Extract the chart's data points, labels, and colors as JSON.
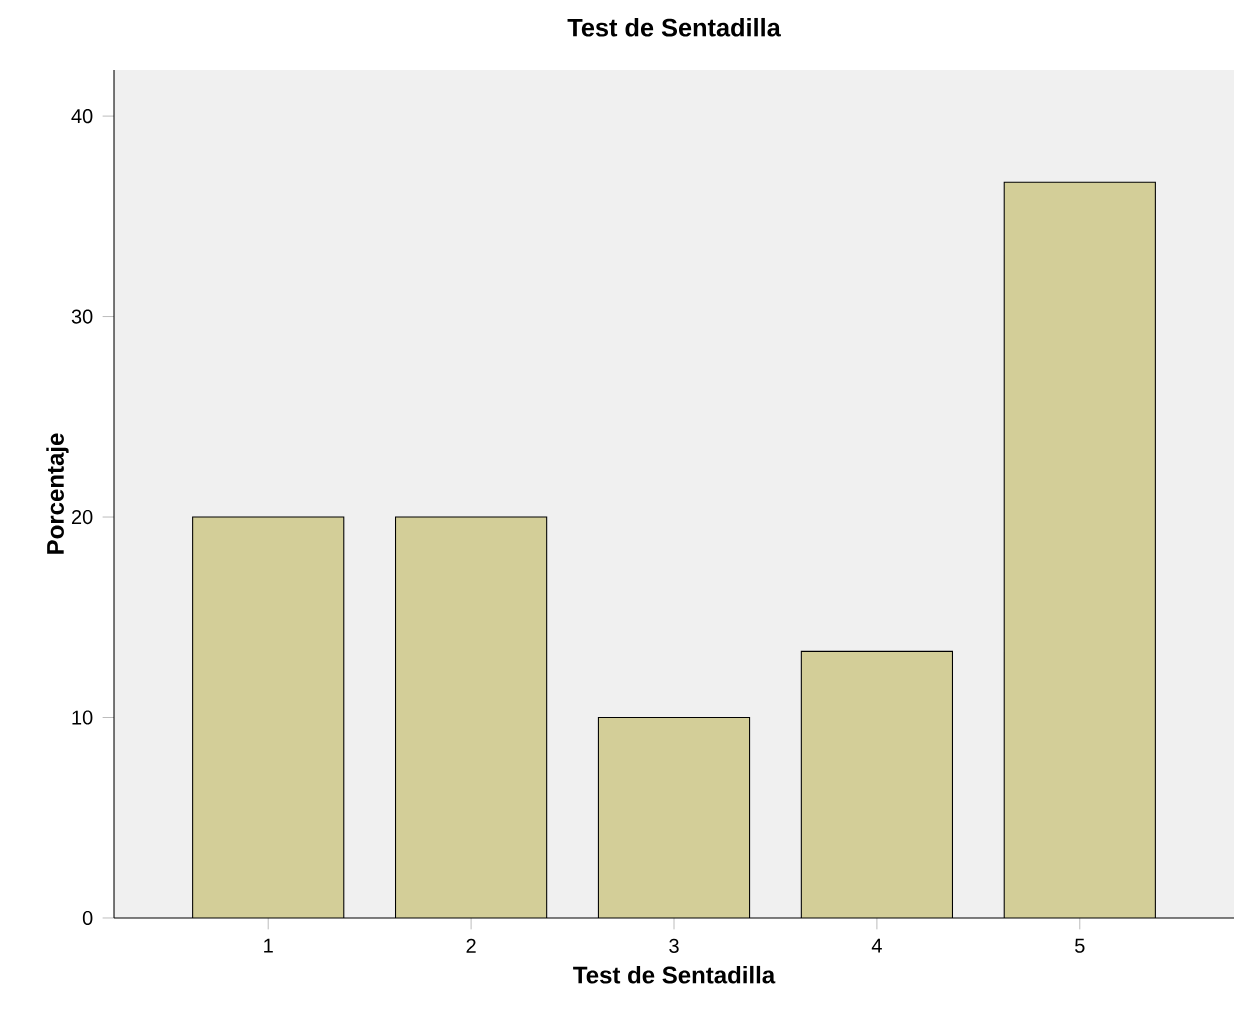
{
  "chart_data": {
    "type": "bar",
    "title": "Test de Sentadilla",
    "xlabel": "Test de Sentadilla",
    "ylabel": "Porcentaje",
    "categories": [
      "1",
      "2",
      "3",
      "4",
      "5"
    ],
    "values": [
      20,
      20,
      10,
      13.3,
      36.7
    ],
    "color": "#d3ce98",
    "ylim": [
      0,
      42.3
    ],
    "yticks": [
      0,
      10,
      20,
      30,
      40
    ],
    "grid": false
  }
}
